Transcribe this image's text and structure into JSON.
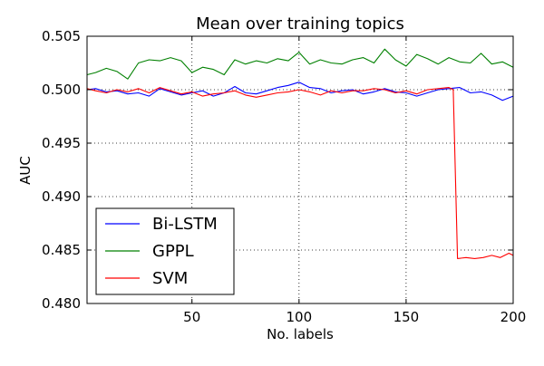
{
  "chart_data": {
    "type": "line",
    "title": "Mean over training topics",
    "xlabel": "No. labels",
    "ylabel": "AUC",
    "xlim": [
      1,
      200
    ],
    "ylim": [
      0.48,
      0.505
    ],
    "xticks": [
      50,
      100,
      150,
      200
    ],
    "xtick_labels": [
      "50",
      "100",
      "150",
      "200"
    ],
    "yticks": [
      0.48,
      0.485,
      0.49,
      0.495,
      0.5,
      0.505
    ],
    "ytick_labels": [
      "0.480",
      "0.485",
      "0.490",
      "0.495",
      "0.500",
      "0.505"
    ],
    "grid": true,
    "grid_style": "dotted",
    "legend_position": "lower-left",
    "series": [
      {
        "name": "Bi-LSTM",
        "color": "#0000ff",
        "x": [
          1,
          5,
          10,
          15,
          20,
          25,
          30,
          35,
          40,
          45,
          50,
          55,
          60,
          65,
          70,
          75,
          80,
          85,
          90,
          95,
          100,
          105,
          110,
          115,
          120,
          125,
          130,
          135,
          140,
          145,
          150,
          155,
          160,
          165,
          170,
          175,
          180,
          185,
          190,
          195,
          200
        ],
        "y": [
          0.5,
          0.5001,
          0.4998,
          0.4999,
          0.4996,
          0.4997,
          0.4994,
          0.5001,
          0.4998,
          0.4995,
          0.4997,
          0.4999,
          0.4994,
          0.4997,
          0.5003,
          0.4997,
          0.4996,
          0.4999,
          0.5002,
          0.5004,
          0.5007,
          0.5002,
          0.5001,
          0.4997,
          0.4999,
          0.5,
          0.4996,
          0.4998,
          0.5001,
          0.4998,
          0.4997,
          0.4994,
          0.4997,
          0.5,
          0.5001,
          0.5002,
          0.4997,
          0.4998,
          0.4995,
          0.499,
          0.4994
        ]
      },
      {
        "name": "GPPL",
        "color": "#008000",
        "x": [
          1,
          5,
          10,
          15,
          20,
          25,
          30,
          35,
          40,
          45,
          50,
          55,
          60,
          65,
          70,
          75,
          80,
          85,
          90,
          95,
          100,
          105,
          110,
          115,
          120,
          125,
          130,
          135,
          140,
          145,
          150,
          155,
          160,
          165,
          170,
          175,
          180,
          185,
          190,
          195,
          200
        ],
        "y": [
          0.5014,
          0.5016,
          0.502,
          0.5017,
          0.501,
          0.5025,
          0.5028,
          0.5027,
          0.503,
          0.5027,
          0.5016,
          0.5021,
          0.5019,
          0.5014,
          0.5028,
          0.5024,
          0.5027,
          0.5025,
          0.5029,
          0.5027,
          0.5035,
          0.5024,
          0.5028,
          0.5025,
          0.5024,
          0.5028,
          0.503,
          0.5025,
          0.5038,
          0.5028,
          0.5022,
          0.5033,
          0.5029,
          0.5024,
          0.503,
          0.5026,
          0.5025,
          0.5034,
          0.5024,
          0.5026,
          0.5021
        ]
      },
      {
        "name": "SVM",
        "color": "#ff0000",
        "x": [
          1,
          5,
          10,
          15,
          20,
          25,
          30,
          35,
          40,
          45,
          50,
          55,
          60,
          65,
          70,
          75,
          80,
          85,
          90,
          95,
          100,
          105,
          110,
          115,
          120,
          125,
          130,
          135,
          140,
          145,
          150,
          155,
          160,
          165,
          170,
          172,
          174,
          178,
          182,
          186,
          190,
          194,
          198,
          200
        ],
        "y": [
          0.5001,
          0.4999,
          0.4997,
          0.5,
          0.4998,
          0.5001,
          0.4997,
          0.5002,
          0.4999,
          0.4996,
          0.4998,
          0.4994,
          0.4996,
          0.4997,
          0.4999,
          0.4995,
          0.4993,
          0.4995,
          0.4997,
          0.4998,
          0.5,
          0.4998,
          0.4995,
          0.4999,
          0.4997,
          0.4999,
          0.4999,
          0.5001,
          0.5,
          0.4997,
          0.4999,
          0.4996,
          0.5,
          0.5001,
          0.5002,
          0.5,
          0.4842,
          0.4843,
          0.4842,
          0.4843,
          0.4845,
          0.4843,
          0.4847,
          0.4845
        ]
      }
    ]
  }
}
